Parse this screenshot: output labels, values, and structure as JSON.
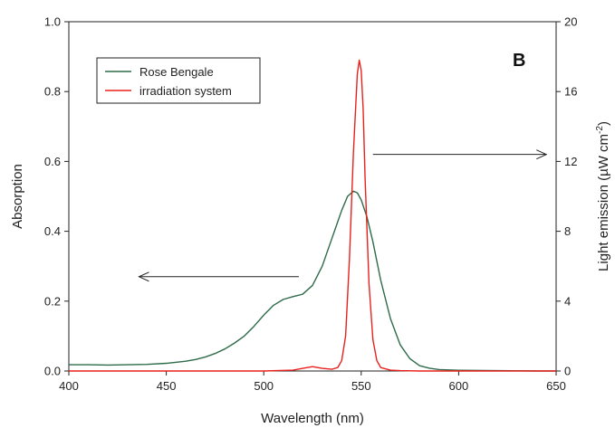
{
  "chart_data": {
    "type": "line",
    "panel_label": "B",
    "xlabel": "Wavelength (nm)",
    "ylabel_left": "Absorption",
    "ylabel_right_base": "Light emission (µW cm",
    "ylabel_right_sup": "-2",
    "ylabel_right_close": ")",
    "xlim": [
      400,
      650
    ],
    "ylim_left": [
      0,
      1.0
    ],
    "ylim_right": [
      0,
      20
    ],
    "x_ticks": [
      "400",
      "450",
      "500",
      "550",
      "600",
      "650"
    ],
    "y_left_ticks": [
      "0.0",
      "0.2",
      "0.4",
      "0.6",
      "0.8",
      "1.0"
    ],
    "y_right_ticks": [
      "0",
      "4",
      "8",
      "12",
      "16",
      "20"
    ],
    "legend_position": "top-left",
    "series": [
      {
        "name": "Rose Bengale",
        "color": "#2e6b4a",
        "axis": "left",
        "x": [
          400,
          410,
          420,
          430,
          440,
          450,
          460,
          465,
          470,
          475,
          480,
          485,
          490,
          495,
          500,
          505,
          510,
          515,
          518,
          520,
          525,
          530,
          535,
          540,
          543,
          546,
          548,
          550,
          553,
          556,
          560,
          565,
          570,
          575,
          580,
          585,
          590,
          600,
          620,
          640,
          650
        ],
        "y": [
          0.018,
          0.018,
          0.017,
          0.018,
          0.019,
          0.022,
          0.028,
          0.033,
          0.04,
          0.05,
          0.063,
          0.08,
          0.1,
          0.128,
          0.16,
          0.188,
          0.205,
          0.213,
          0.217,
          0.22,
          0.245,
          0.3,
          0.38,
          0.46,
          0.5,
          0.515,
          0.51,
          0.49,
          0.44,
          0.37,
          0.26,
          0.15,
          0.075,
          0.035,
          0.015,
          0.008,
          0.004,
          0.002,
          0.001,
          0.0,
          0.0
        ]
      },
      {
        "name": "irradiation system",
        "color": "#e8211d",
        "axis": "right",
        "x": [
          400,
          500,
          515,
          520,
          525,
          530,
          535,
          538,
          540,
          542,
          544,
          546,
          548,
          549,
          550,
          551,
          552,
          554,
          556,
          558,
          560,
          565,
          570,
          580,
          600,
          650
        ],
        "y": [
          0.0,
          0.0,
          0.05,
          0.15,
          0.25,
          0.15,
          0.1,
          0.2,
          0.6,
          2.0,
          6.5,
          12.5,
          17.0,
          17.8,
          17.2,
          15.0,
          11.0,
          5.0,
          1.8,
          0.6,
          0.2,
          0.05,
          0.02,
          0.0,
          0.0,
          0.0
        ]
      }
    ],
    "annotations": [
      {
        "type": "arrow",
        "from_x": 518,
        "from_y_left": 0.27,
        "to_x": 436,
        "to_y_left": 0.27
      },
      {
        "type": "arrow",
        "from_x": 556,
        "from_y_left": 0.62,
        "to_x": 645,
        "to_y_left": 0.62
      }
    ]
  }
}
